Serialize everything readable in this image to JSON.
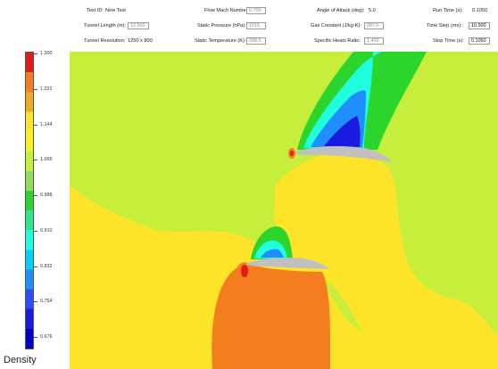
{
  "params": {
    "test_id": {
      "label": "Test ID:",
      "value": "New Test"
    },
    "tunnel_length": {
      "label": "Tunnel Length (m):",
      "value": "12.500"
    },
    "tunnel_resolution": {
      "label": "Tunnel Resolution:",
      "value": "1250 x 800"
    },
    "flow_mach": {
      "label": "Flow Mach Number:",
      "value": "0.700"
    },
    "static_pressure": {
      "label": "Static Pressure (hPa):",
      "value": "1015"
    },
    "static_temperature": {
      "label": "Static Temperature (K):",
      "value": "288.0"
    },
    "angle_of_attack": {
      "label": "Angle of Attack (deg):",
      "value": "5.0"
    },
    "gas_constant": {
      "label": "Gas Constant (J/kg-K):",
      "value": "287.0"
    },
    "specific_heats": {
      "label": "Specific Heats Ratio:",
      "value": "1.400"
    },
    "run_time": {
      "label": "Run Time (s):",
      "value": "0.1050"
    },
    "time_step": {
      "label": "Time Step (ms):",
      "value": "10.500"
    },
    "stop_time": {
      "label": "Stop Time (s):",
      "value": "0.1050"
    }
  },
  "colorbar": {
    "ticks": [
      "1.300",
      "1.222",
      "1.144",
      "1.066",
      "0.988",
      "0.910",
      "0.832",
      "0.754",
      "0.676"
    ],
    "colors": [
      "#e41a1c",
      "#f47d20",
      "#f5a623",
      "#fde428",
      "#f7f224",
      "#c8ee3c",
      "#8ee05a",
      "#2bd52b",
      "#2ee58a",
      "#1fffe0",
      "#00cfff",
      "#1f8fff",
      "#2a4dff",
      "#1a1ae0",
      "#0000c8"
    ],
    "caption": "Density"
  },
  "field_colors": {
    "background": "#c8ee3c",
    "high": "#fde428",
    "low_stagnation": "#f47d20",
    "peak": "#e41a1c",
    "airfoil": "#c0c0c0"
  }
}
